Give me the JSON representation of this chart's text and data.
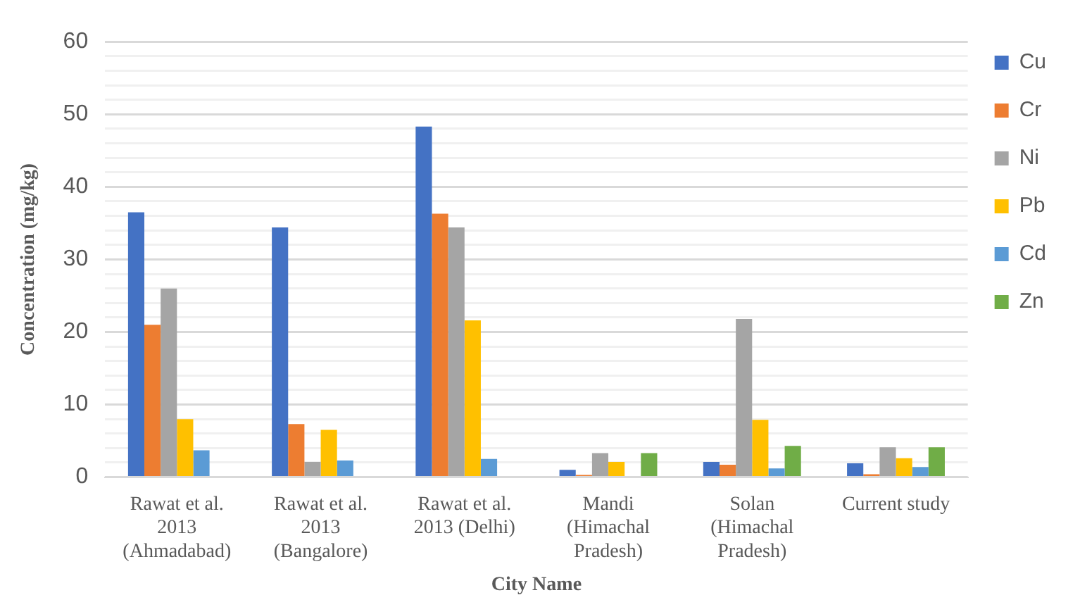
{
  "chart_data": {
    "type": "bar",
    "xlabel": "City Name",
    "ylabel": "Concentration (mg/kg)",
    "categories": [
      "Rawat et al. 2013 (Ahmadabad)",
      "Rawat et al. 2013 (Bangalore)",
      "Rawat et al. 2013 (Delhi)",
      "Mandi (Himachal Pradesh)",
      "Solan (Himachal Pradesh)",
      "Current study"
    ],
    "series": [
      {
        "name": "Cu",
        "color": "#4472c4",
        "values": [
          36.5,
          34.4,
          48.3,
          1.0,
          2.1,
          1.9
        ]
      },
      {
        "name": "Cr",
        "color": "#ed7d31",
        "values": [
          21,
          7.3,
          36.3,
          0.3,
          1.7,
          0.4
        ]
      },
      {
        "name": "Ni",
        "color": "#a5a5a5",
        "values": [
          26,
          2.1,
          34.4,
          3.3,
          21.8,
          4.1
        ]
      },
      {
        "name": "Pb",
        "color": "#ffc000",
        "values": [
          8,
          6.5,
          21.6,
          2.1,
          7.9,
          2.6
        ]
      },
      {
        "name": "Cd",
        "color": "#5b9bd5",
        "values": [
          3.7,
          2.3,
          2.5,
          null,
          1.2,
          1.4
        ]
      },
      {
        "name": "Zn",
        "color": "#70ad47",
        "values": [
          null,
          null,
          null,
          3.3,
          4.3,
          4.1
        ]
      }
    ],
    "ylim": [
      0,
      60
    ],
    "yticks": [
      0,
      {
        "value": 2,
        "label": null
      },
      {
        "value": 4,
        "label": null
      },
      {
        "value": 6,
        "label": null
      },
      {
        "value": 8,
        "label": null
      },
      10,
      {
        "value": 12,
        "label": null
      },
      {
        "value": 14,
        "label": null
      },
      {
        "value": 16,
        "label": null
      },
      {
        "value": 18,
        "label": null
      },
      20,
      {
        "value": 22,
        "label": null
      },
      {
        "value": 24,
        "label": null
      },
      {
        "value": 26,
        "label": null
      },
      {
        "value": 28,
        "label": null
      },
      30,
      {
        "value": 32,
        "label": null
      },
      {
        "value": 34,
        "label": null
      },
      {
        "value": 36,
        "label": null
      },
      {
        "value": 38,
        "label": null
      },
      40,
      {
        "value": 42,
        "label": null
      },
      {
        "value": 44,
        "label": null
      },
      {
        "value": 46,
        "label": null
      },
      {
        "value": 48,
        "label": null
      },
      50,
      {
        "value": 52,
        "label": null
      },
      {
        "value": 54,
        "label": null
      },
      {
        "value": 56,
        "label": null
      },
      {
        "value": 58,
        "label": null
      },
      60
    ],
    "grid": "y",
    "legend": "top right"
  }
}
